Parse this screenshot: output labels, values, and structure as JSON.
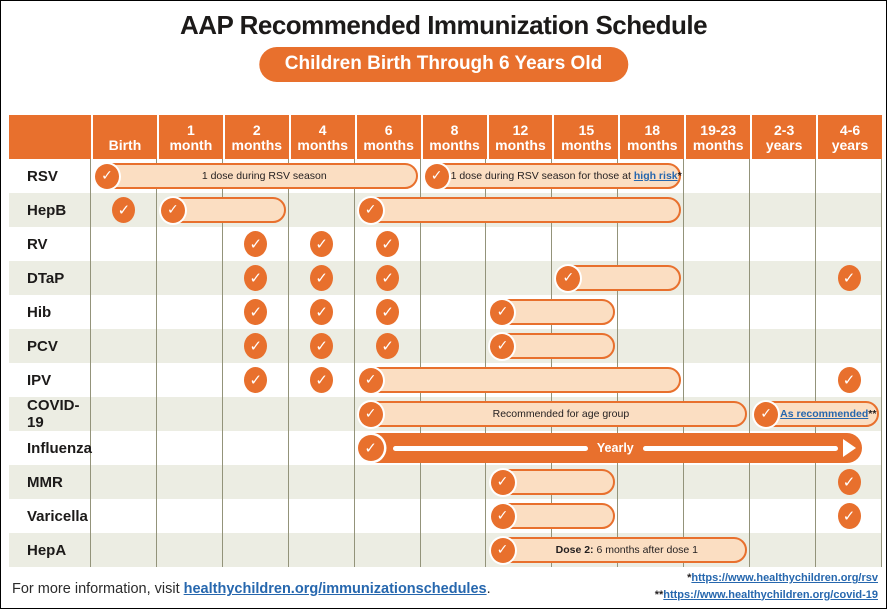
{
  "colors": {
    "orange": "#E8702D",
    "pill_fill": "#FBDEC2",
    "row_shade": "#ECEDE3",
    "grid_line": "#93937A",
    "link_blue": "#2667AE",
    "text_dark": "#231F20"
  },
  "chart_data": {
    "type": "table",
    "title": "AAP Recommended Immunization Schedule",
    "subtitle": "Children Birth Through 6 Years Old",
    "columns": [
      [
        "Birth"
      ],
      [
        "1",
        "month"
      ],
      [
        "2",
        "months"
      ],
      [
        "4",
        "months"
      ],
      [
        "6",
        "months"
      ],
      [
        "8",
        "months"
      ],
      [
        "12",
        "months"
      ],
      [
        "15",
        "months"
      ],
      [
        "18",
        "months"
      ],
      [
        "19-23",
        "months"
      ],
      [
        "2-3",
        "years"
      ],
      [
        "4-6",
        "years"
      ]
    ],
    "rows": [
      {
        "vaccine": "RSV",
        "shaded": false,
        "marks": [
          {
            "type": "pill",
            "from": 0,
            "to": 4,
            "label": "1 dose during RSV season"
          },
          {
            "type": "pill",
            "from": 5,
            "to": 8,
            "label": "1 dose during RSV season for those at ",
            "link_text": "high risk",
            "suffix": "*"
          }
        ]
      },
      {
        "vaccine": "HepB",
        "shaded": true,
        "marks": [
          {
            "type": "check",
            "col": 0
          },
          {
            "type": "pill",
            "from": 1,
            "to": 2
          },
          {
            "type": "pill",
            "from": 4,
            "to": 8
          }
        ]
      },
      {
        "vaccine": "RV",
        "shaded": false,
        "marks": [
          {
            "type": "check",
            "col": 2
          },
          {
            "type": "check",
            "col": 3
          },
          {
            "type": "check",
            "col": 4
          }
        ]
      },
      {
        "vaccine": "DTaP",
        "shaded": true,
        "marks": [
          {
            "type": "check",
            "col": 2
          },
          {
            "type": "check",
            "col": 3
          },
          {
            "type": "check",
            "col": 4
          },
          {
            "type": "pill",
            "from": 7,
            "to": 8
          },
          {
            "type": "check",
            "col": 11
          }
        ]
      },
      {
        "vaccine": "Hib",
        "shaded": false,
        "marks": [
          {
            "type": "check",
            "col": 2
          },
          {
            "type": "check",
            "col": 3
          },
          {
            "type": "check",
            "col": 4
          },
          {
            "type": "pill",
            "from": 6,
            "to": 7
          }
        ]
      },
      {
        "vaccine": "PCV",
        "shaded": true,
        "marks": [
          {
            "type": "check",
            "col": 2
          },
          {
            "type": "check",
            "col": 3
          },
          {
            "type": "check",
            "col": 4
          },
          {
            "type": "pill",
            "from": 6,
            "to": 7
          }
        ]
      },
      {
        "vaccine": "IPV",
        "shaded": false,
        "marks": [
          {
            "type": "check",
            "col": 2
          },
          {
            "type": "check",
            "col": 3
          },
          {
            "type": "pill",
            "from": 4,
            "to": 8
          },
          {
            "type": "check",
            "col": 11
          }
        ]
      },
      {
        "vaccine": "COVID-19",
        "shaded": true,
        "marks": [
          {
            "type": "pill",
            "from": 4,
            "to": 9,
            "label": "Recommended for age group"
          },
          {
            "type": "pill",
            "from": 10,
            "to": 11,
            "link_text": "As recommended",
            "suffix": "**"
          }
        ]
      },
      {
        "vaccine": "Influenza",
        "shaded": false,
        "marks": [
          {
            "type": "arrow",
            "from": 4,
            "to": 11,
            "label": "Yearly"
          }
        ]
      },
      {
        "vaccine": "MMR",
        "shaded": true,
        "marks": [
          {
            "type": "pill",
            "from": 6,
            "to": 7
          },
          {
            "type": "check",
            "col": 11
          }
        ]
      },
      {
        "vaccine": "Varicella",
        "shaded": false,
        "marks": [
          {
            "type": "pill",
            "from": 6,
            "to": 7
          },
          {
            "type": "check",
            "col": 11
          }
        ]
      },
      {
        "vaccine": "HepA",
        "shaded": true,
        "marks": [
          {
            "type": "pill",
            "from": 6,
            "to": 9,
            "bold_prefix": "Dose 2:",
            "label": " 6 months after dose 1"
          }
        ]
      }
    ]
  },
  "footer": {
    "info_prefix": "For more information, visit ",
    "info_link": "healthychildren.org/immunizationschedules",
    "info_suffix": ".",
    "footnotes": [
      {
        "marker": "*",
        "link": "https://www.healthychildren.org/rsv"
      },
      {
        "marker": "**",
        "link": "https://www.healthychildren.org/covid-19"
      }
    ]
  }
}
